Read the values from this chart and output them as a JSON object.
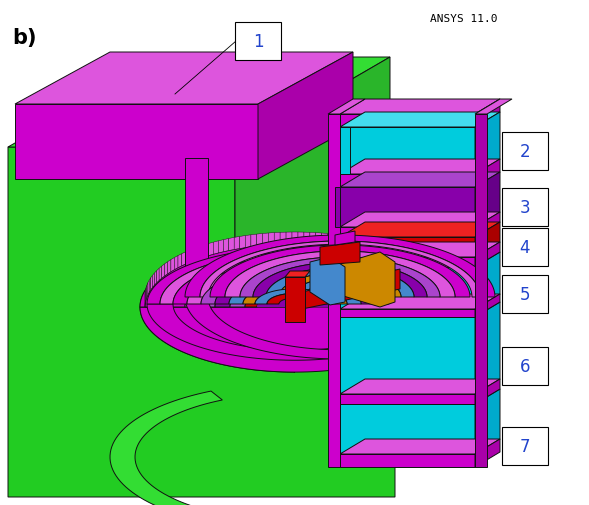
{
  "title": "ANSYS 11.0",
  "label_b": "b)",
  "bg_color": "#ffffff",
  "green": "#22cc22",
  "green_light": "#33dd33",
  "mag": "#cc00cc",
  "mag_light": "#dd55dd",
  "mag_dark": "#aa00aa",
  "mag_side": "#cc44cc",
  "cyan": "#00ccdd",
  "cyan_light": "#44ddee",
  "purple": "#8800aa",
  "purple_light": "#aa44cc",
  "red": "#cc0000",
  "red_light": "#ee2222",
  "orange": "#cc8800",
  "blue": "#4488cc",
  "blue_light": "#66aadd",
  "ec": "#111111",
  "lw": 0.7
}
